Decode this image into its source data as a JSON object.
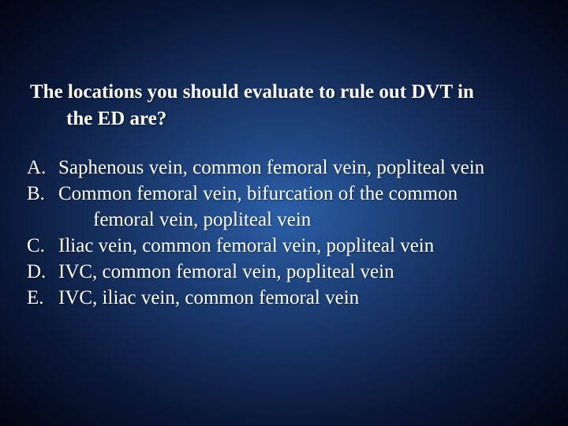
{
  "slide": {
    "background": {
      "gradient_center": "#2b5fa8",
      "gradient_mid": "#1a3a6e",
      "gradient_outer": "#0a1838",
      "gradient_edge": "#020512"
    },
    "text_color": "#ffffff",
    "font_family": "Times New Roman",
    "question": {
      "line1": "The locations you should evaluate to rule out DVT in",
      "line2": "the ED are?",
      "fontsize": 25,
      "bold": true
    },
    "options": {
      "fontsize": 25,
      "items": [
        {
          "letter": "A.",
          "text": "Saphenous vein, common femoral vein, popliteal vein"
        },
        {
          "letter": "B.",
          "text": "Common femoral vein, bifurcation of the common",
          "text_cont": "femoral vein, popliteal vein"
        },
        {
          "letter": "C.",
          "text": "Iliac vein, common femoral vein, popliteal vein"
        },
        {
          "letter": "D.",
          "text": "IVC, common femoral vein, popliteal vein"
        },
        {
          "letter": "E.",
          "text": "IVC, iliac vein, common femoral vein"
        }
      ]
    }
  }
}
